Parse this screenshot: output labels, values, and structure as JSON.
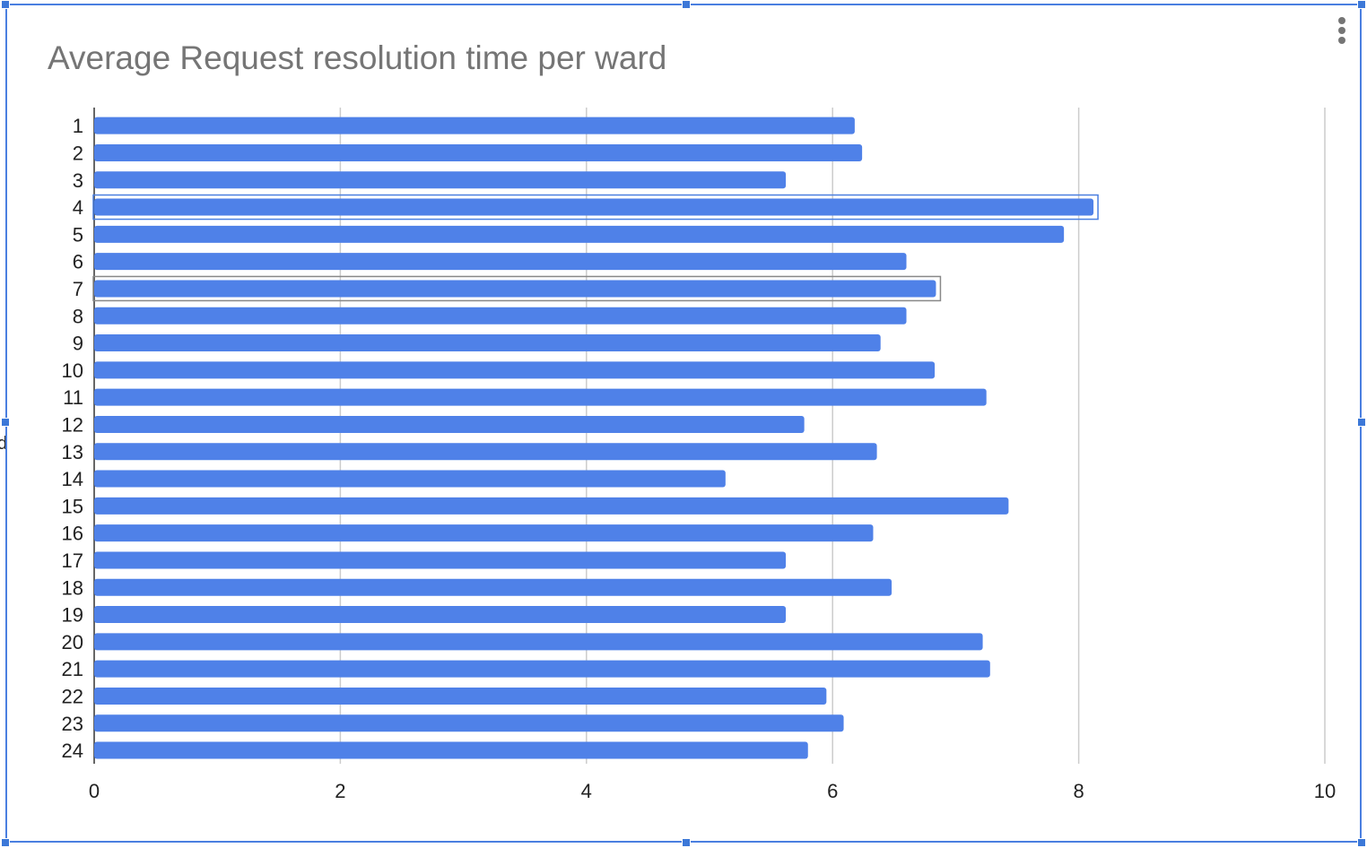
{
  "chart_data": {
    "type": "bar",
    "orientation": "horizontal",
    "title": "Average Request resolution time per ward",
    "xlabel": "",
    "ylabel": "",
    "categories": [
      "1",
      "2",
      "3",
      "4",
      "5",
      "6",
      "7",
      "8",
      "9",
      "10",
      "11",
      "12",
      "13",
      "14",
      "15",
      "16",
      "17",
      "18",
      "19",
      "20",
      "21",
      "22",
      "23",
      "24"
    ],
    "values": [
      6.18,
      6.24,
      5.62,
      8.12,
      7.88,
      6.6,
      6.84,
      6.6,
      6.39,
      6.83,
      7.25,
      5.77,
      6.36,
      5.13,
      7.43,
      6.33,
      5.62,
      6.48,
      5.62,
      7.22,
      7.28,
      5.95,
      6.09,
      5.8
    ],
    "xlim": [
      0,
      10
    ],
    "xticks": [
      "0",
      "2",
      "4",
      "6",
      "8",
      "10"
    ],
    "grid": true,
    "legend": "none",
    "bar_color": "#4f81e8",
    "grid_color": "#cccccc",
    "highlighted_bars": [
      "4",
      "7"
    ]
  },
  "ui": {
    "menu_icon": "vertical-dots-icon",
    "accent": "#3c78d8"
  }
}
